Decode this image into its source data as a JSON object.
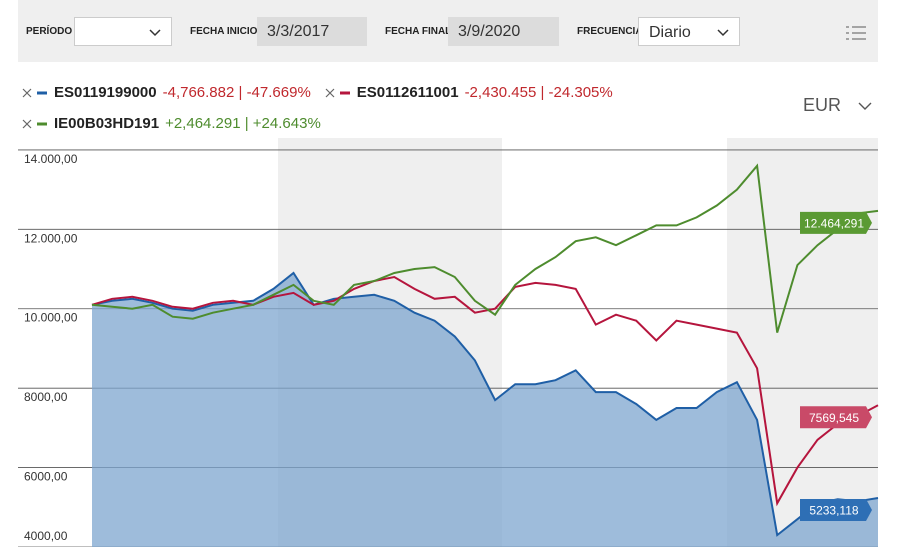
{
  "controls": {
    "period_label": "PERÍODO",
    "start_label": "FECHA INICIO",
    "start_value": "3/3/2017",
    "end_label": "FECHA FINAL",
    "end_value": "3/9/2020",
    "freq_label": "FRECUENCIA",
    "freq_value": "Diario",
    "currency": "EUR"
  },
  "chart_data": {
    "type": "line",
    "ylim": [
      4000,
      14300
    ],
    "yticks": [
      {
        "value": 14000,
        "label": "14.000,00"
      },
      {
        "value": 12000,
        "label": "12.000,00"
      },
      {
        "value": 10000,
        "label": "10.000,00"
      },
      {
        "value": 8000,
        "label": "8000,00"
      },
      {
        "value": 6000,
        "label": "6000,00"
      },
      {
        "value": 4000,
        "label": "4000,00"
      }
    ],
    "grid": true,
    "series": [
      {
        "name": "ES0119199000",
        "color": "#1f5fa6",
        "label_color": "#2e6fb5",
        "area": true,
        "change": "-4,766.882 | -47.669%",
        "last_label": "5233,118",
        "values": [
          10100,
          10200,
          10250,
          10150,
          10000,
          9950,
          10100,
          10150,
          10200,
          10500,
          10900,
          10100,
          10250,
          10300,
          10350,
          10200,
          9900,
          9700,
          9300,
          8700,
          7700,
          8100,
          8100,
          8200,
          8450,
          7900,
          7900,
          7600,
          7200,
          7500,
          7500,
          7900,
          8150,
          7200,
          4300,
          4700,
          5100,
          5200,
          5150,
          5233.118
        ]
      },
      {
        "name": "ES0112611001",
        "color": "#b5153d",
        "label_color": "#c94a68",
        "area": false,
        "change": "-2,430.455 | -24.305%",
        "last_label": "7569,545",
        "values": [
          10100,
          10250,
          10300,
          10200,
          10050,
          10000,
          10150,
          10200,
          10100,
          10300,
          10400,
          10100,
          10200,
          10500,
          10700,
          10800,
          10500,
          10250,
          10300,
          9900,
          10000,
          10550,
          10650,
          10600,
          10500,
          9600,
          9850,
          9700,
          9200,
          9700,
          9600,
          9500,
          9400,
          8500,
          5100,
          6000,
          6700,
          7100,
          7300,
          7569.545
        ]
      },
      {
        "name": "IE00B03HD191",
        "color": "#4e8c2e",
        "label_color": "#5a9a33",
        "area": false,
        "change": "+2,464.291 | +24.643%",
        "last_label": "12.464,291",
        "values": [
          10100,
          10050,
          10000,
          10100,
          9800,
          9750,
          9900,
          10000,
          10100,
          10350,
          10600,
          10200,
          10100,
          10600,
          10700,
          10900,
          11000,
          11050,
          10800,
          10200,
          9850,
          10600,
          11000,
          11300,
          11700,
          11800,
          11600,
          11850,
          12100,
          12100,
          12300,
          12600,
          13000,
          13600,
          9400,
          11100,
          11600,
          12000,
          12400,
          12464.291
        ]
      }
    ]
  }
}
